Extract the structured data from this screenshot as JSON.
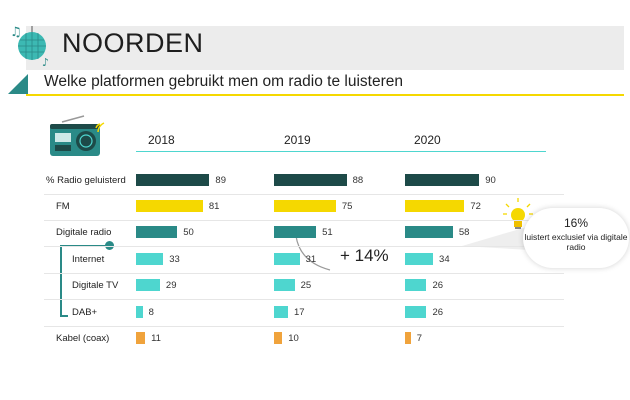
{
  "header": {
    "title": "NOORDEN",
    "subtitle": "Welke platformen gebruikt men om radio te luisteren"
  },
  "years": [
    "2018",
    "2019",
    "2020"
  ],
  "chart_data": {
    "type": "bar",
    "orientation": "horizontal",
    "categories": [
      "% Radio geluisterd",
      "FM",
      "Digitale radio",
      "Internet",
      "Digitale TV",
      "DAB+",
      "Kabel (coax)"
    ],
    "series": [
      {
        "name": "2018",
        "values": [
          89,
          81,
          50,
          33,
          29,
          8,
          11
        ]
      },
      {
        "name": "2019",
        "values": [
          88,
          75,
          51,
          31,
          25,
          17,
          10
        ]
      },
      {
        "name": "2020",
        "values": [
          90,
          72,
          58,
          34,
          26,
          26,
          7
        ]
      }
    ],
    "category_colors": [
      "#1d4a48",
      "#f5d800",
      "#2a8a87",
      "#4ed6cf",
      "#4ed6cf",
      "#4ed6cf",
      "#f0a33c"
    ],
    "xlim": [
      0,
      100
    ],
    "grid": false
  },
  "annotations": {
    "growth": "+ 14%",
    "callout_value": "16%",
    "callout_text": "luistert exclusief via digitale radio"
  },
  "icons": [
    "radio-icon",
    "music-note-icon",
    "disco-ball-icon",
    "lightbulb-icon"
  ]
}
